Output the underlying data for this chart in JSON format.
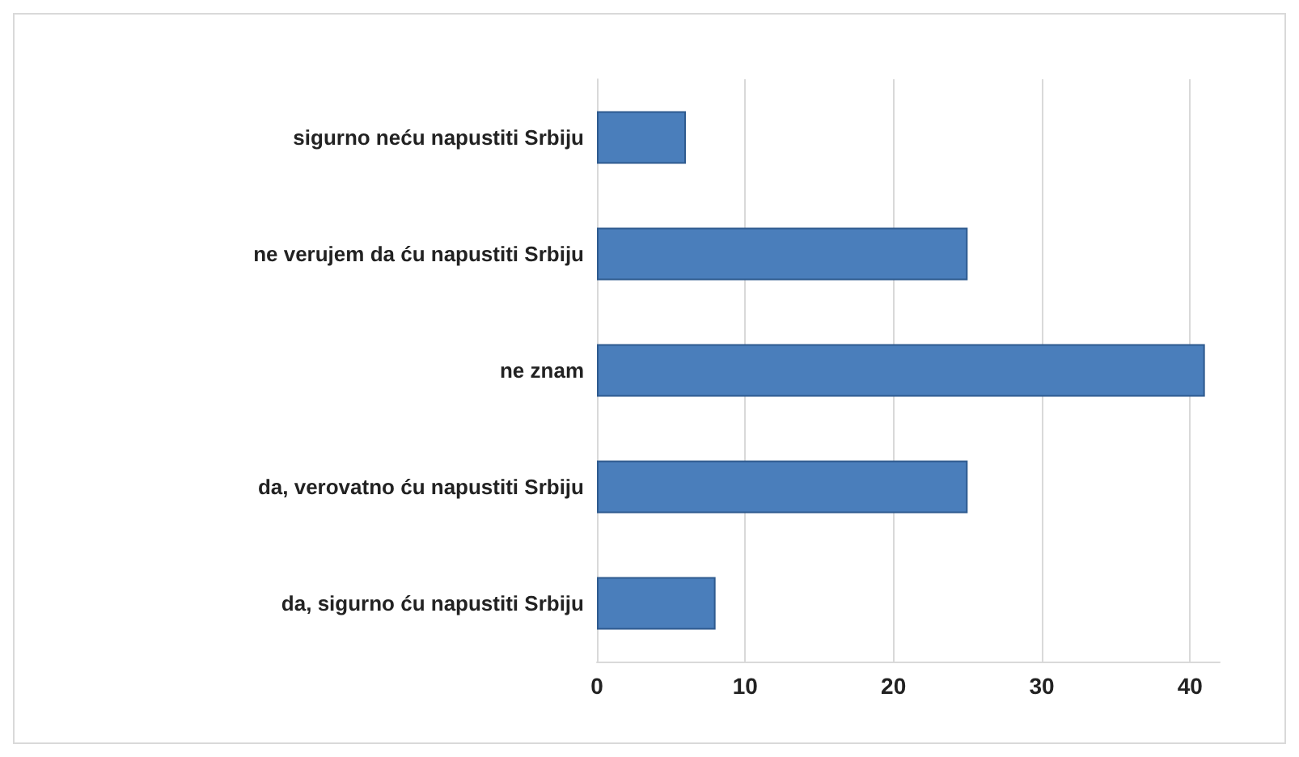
{
  "chart_data": {
    "type": "bar",
    "orientation": "horizontal",
    "categories": [
      "sigurno neću napustiti Srbiju",
      "ne verujem da ću napustiti Srbiju",
      "ne znam",
      "da, verovatno ću napustiti Srbiju",
      "da, sigurno ću napustiti Srbiju"
    ],
    "values": [
      6,
      25,
      41,
      25,
      8
    ],
    "color": "#4a7ebb",
    "xlim": [
      0,
      42
    ],
    "xticks": [
      0,
      10,
      20,
      30,
      40
    ],
    "grid": "x"
  }
}
